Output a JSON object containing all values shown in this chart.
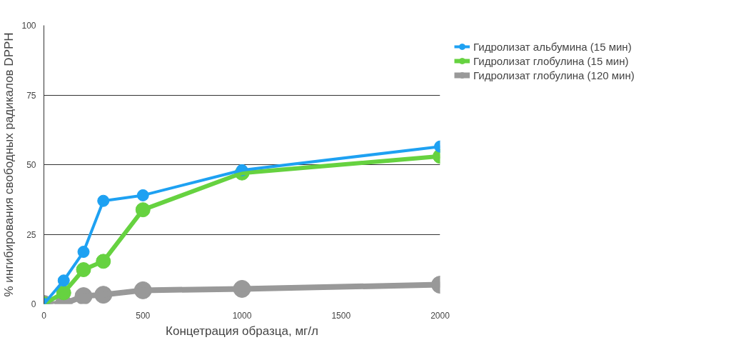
{
  "chart_data": {
    "type": "line",
    "xlabel": "Концетрация образца, мг/л",
    "ylabel": "% ингибирования свободных радикалов DPPH",
    "x": [
      0,
      100,
      200,
      300,
      500,
      1000,
      2000
    ],
    "xlim": [
      0,
      2000
    ],
    "xticks": [
      0,
      500,
      1000,
      1500,
      2000
    ],
    "ylim": [
      0,
      100
    ],
    "yticks": [
      0,
      25,
      50,
      75,
      100
    ],
    "grid": "y",
    "legend": "top right",
    "marker": "circle",
    "line_style": "solid",
    "series": [
      {
        "name": "Гидролизат альбумина (15 мин)",
        "color": "#1ea1f2",
        "values": [
          0,
          8.4,
          18.7,
          37,
          39,
          48,
          56.5
        ]
      },
      {
        "name": "Гидролизат глобулина (15 мин)",
        "color": "#66d240",
        "values": [
          0,
          4,
          12.3,
          15.3,
          33.8,
          47,
          53
        ]
      },
      {
        "name": "Гидролизат глобулина (120 мин)",
        "color": "#999999",
        "values": [
          0,
          0,
          2.8,
          3.3,
          4.9,
          5.4,
          6.9
        ]
      }
    ]
  }
}
